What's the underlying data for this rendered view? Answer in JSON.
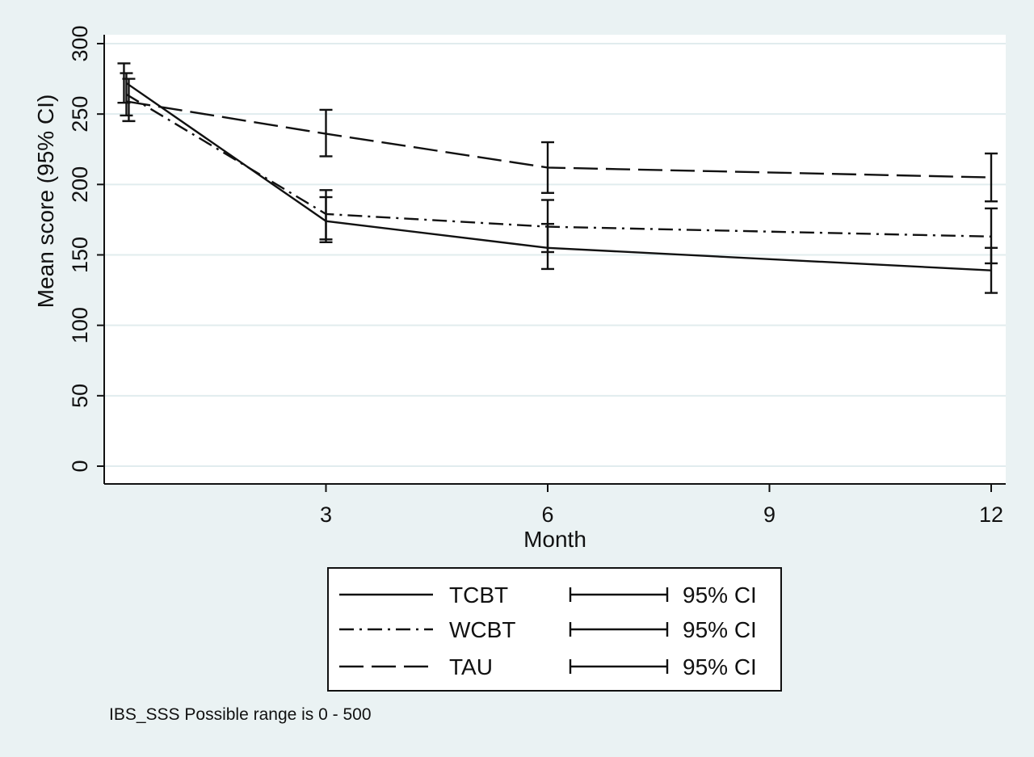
{
  "chart_data": {
    "type": "line",
    "title": "",
    "xlabel": "Month",
    "ylabel": "Mean score (95% CI)",
    "note": "IBS_SSS Possible range is 0 - 500",
    "xlim": [
      0,
      12
    ],
    "ylim": [
      0,
      300
    ],
    "x_ticks": [
      3,
      6,
      9,
      12
    ],
    "y_ticks": [
      0,
      50,
      100,
      150,
      200,
      250,
      300
    ],
    "grid": "horizontal",
    "legend_position": "bottom-center",
    "colors": {
      "background": "#eaf2f3",
      "plot_background": "#ffffff",
      "gridline": "#e1ecee",
      "line": "#111111"
    },
    "series": [
      {
        "name": "TCBT",
        "line_style": "solid",
        "ci_label": "95% CI",
        "x": [
          0.3,
          3,
          6,
          12
        ],
        "y": [
          272,
          174,
          155,
          139
        ],
        "ci_low": [
          258,
          159,
          140,
          123
        ],
        "ci_high": [
          286,
          191,
          172,
          155
        ]
      },
      {
        "name": "WCBT",
        "line_style": "dash-dot",
        "ci_label": "95% CI",
        "x": [
          0.3,
          3,
          6,
          12
        ],
        "y": [
          264,
          179,
          170,
          163
        ],
        "ci_low": [
          249,
          161,
          152,
          144
        ],
        "ci_high": [
          279,
          196,
          189,
          183
        ]
      },
      {
        "name": "TAU",
        "line_style": "long-dash",
        "ci_label": "95% CI",
        "x": [
          0.3,
          3,
          6,
          12
        ],
        "y": [
          259,
          236,
          212,
          205
        ],
        "ci_low": [
          245,
          220,
          194,
          188
        ],
        "ci_high": [
          275,
          253,
          230,
          222
        ]
      }
    ]
  }
}
